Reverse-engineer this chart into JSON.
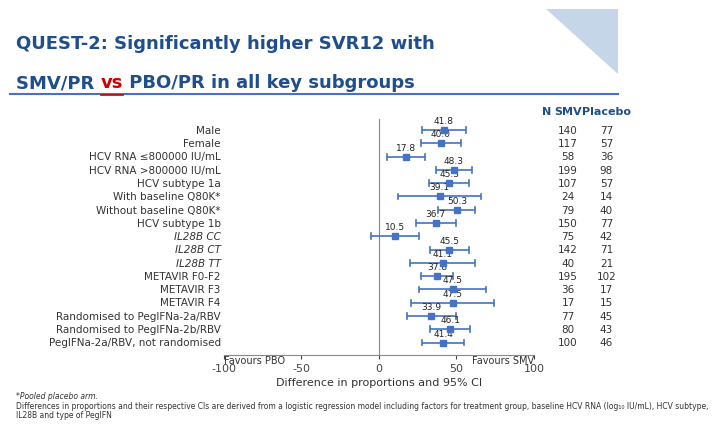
{
  "title_line1": "QUEST-2: Significantly higher SVR12 with",
  "title_line2_pre": "SMV/PR ",
  "title_line2_vs": "vs",
  "title_line2_post": " PBO/PR in all key subgroups",
  "background_color": "#ffffff",
  "title_color": "#1f4e8c",
  "title_fontsize": 13,
  "vs_color": "#cc0000",
  "subgroups": [
    "Male",
    "Female",
    "HCV RNA ≤800000 IU/mL",
    "HCV RNA >800000 IU/mL",
    "HCV subtype 1a",
    "With baseline Q80K*",
    "Without baseline Q80K*",
    "HCV subtype 1b",
    "IL28B CC",
    "IL28B CT",
    "IL28B TT",
    "METAVIR F0-F2",
    "METAVIR F3",
    "METAVIR F4",
    "Randomised to PegIFNa-2a/RBV",
    "Randomised to PegIFNa-2b/RBV",
    "PegIFNa-2a/RBV, not randomised"
  ],
  "italic_rows": [
    8,
    9,
    10
  ],
  "point_estimates": [
    41.8,
    40.0,
    17.8,
    48.3,
    45.3,
    39.1,
    50.3,
    36.7,
    10.5,
    45.5,
    41.1,
    37.8,
    47.5,
    47.5,
    33.9,
    46.1,
    41.4
  ],
  "ci_lower": [
    28,
    27,
    5,
    37,
    32,
    12,
    38,
    24,
    -5,
    33,
    20,
    27,
    26,
    21,
    18,
    33,
    28
  ],
  "ci_upper": [
    56,
    53,
    30,
    60,
    58,
    66,
    62,
    50,
    26,
    58,
    62,
    48,
    69,
    74,
    50,
    59,
    55
  ],
  "n_smv": [
    140,
    117,
    58,
    199,
    107,
    24,
    79,
    150,
    75,
    142,
    40,
    195,
    36,
    17,
    77,
    80,
    100
  ],
  "n_placebo": [
    77,
    57,
    36,
    98,
    57,
    14,
    40,
    77,
    42,
    71,
    21,
    102,
    17,
    15,
    45,
    43,
    46
  ],
  "marker_color": "#4472c4",
  "line_color": "#4472c4",
  "xlim": [
    -100,
    100
  ],
  "xticks": [
    -100,
    -50,
    0,
    50,
    100
  ],
  "xlabel": "Difference in proportions and 95% CI",
  "footnote_line1": "*Pooled placebo arm.",
  "footnote_line2": "Differences in proportions and their respective CIs are derived from a logistic regression model including factors for treatment group, baseline HCV RNA (log₁₀ IU/mL), HCV subtype,",
  "footnote_line3": "IL28B and type of PegIFN",
  "sep_line_color": "#4472c4",
  "triangle_color": "#b8cce4"
}
